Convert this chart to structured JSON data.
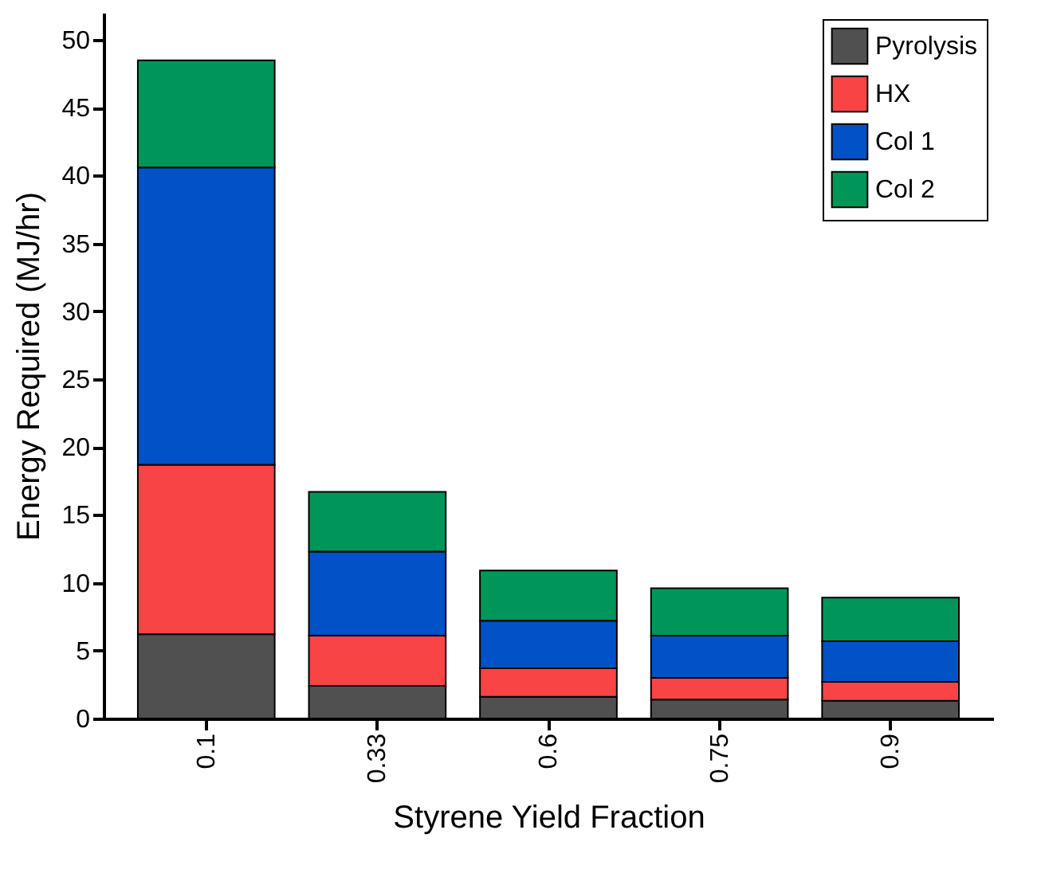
{
  "chart_data": {
    "type": "bar",
    "stacked": true,
    "xlabel": "Styrene Yield Fraction",
    "ylabel": "Energy Required (MJ/hr)",
    "categories": [
      "0.1",
      "0.33",
      "0.6",
      "0.75",
      "0.9"
    ],
    "series": [
      {
        "name": "Pyrolysis",
        "color": "#505050",
        "values": [
          6.2,
          2.4,
          1.6,
          1.4,
          1.3
        ]
      },
      {
        "name": "HX",
        "color": "#f84444",
        "values": [
          12.5,
          3.7,
          2.1,
          1.6,
          1.4
        ]
      },
      {
        "name": "Col 1",
        "color": "#0052c6",
        "values": [
          21.9,
          6.2,
          3.5,
          3.1,
          3.0
        ]
      },
      {
        "name": "Col 2",
        "color": "#009659",
        "values": [
          7.9,
          4.4,
          3.7,
          3.5,
          3.2
        ]
      }
    ],
    "ylim": [
      0,
      52
    ],
    "yticks": [
      0,
      5,
      10,
      15,
      20,
      25,
      30,
      35,
      40,
      45,
      50
    ],
    "legend": "top right"
  }
}
